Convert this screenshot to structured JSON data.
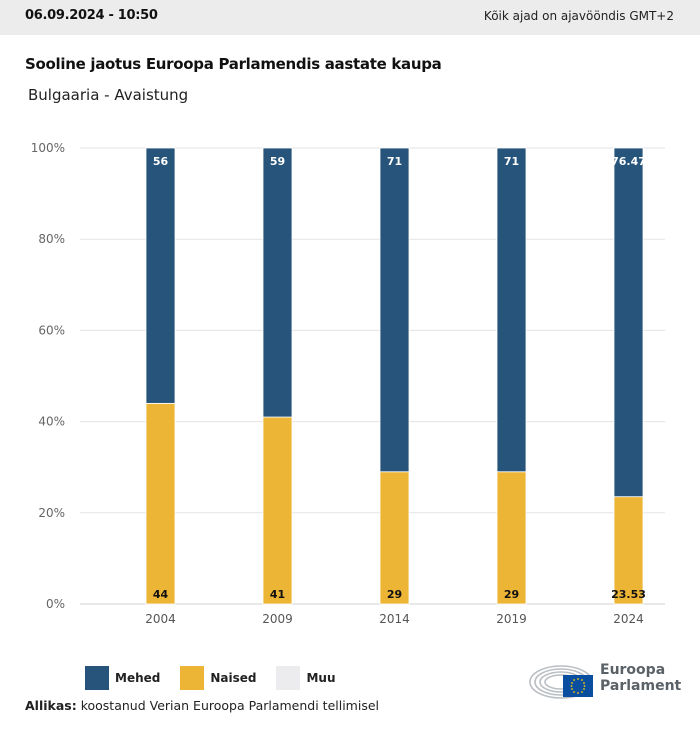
{
  "header": {
    "datetime": "06.09.2024 - 10:50",
    "timezone_note": "Kõik ajad on ajavööndis GMT+2"
  },
  "title": "Sooline jaotus Euroopa Parlamendis aastate kaupa",
  "subtitle": "Bulgaaria - Avaistung",
  "colors": {
    "mehed": "#26547a",
    "naised": "#edb536",
    "muu": "#ececee",
    "grid": "#e3e3e3"
  },
  "legend": [
    {
      "label": "Mehed",
      "color": "#26547a"
    },
    {
      "label": "Naised",
      "color": "#edb536"
    },
    {
      "label": "Muu",
      "color": "#ececee"
    }
  ],
  "source": {
    "label": "Allikas:",
    "text": " koostanud Verian Euroopa Parlamendi tellimisel"
  },
  "logo": {
    "line1": "Euroopa",
    "line2": "Parlament"
  },
  "chart_data": {
    "type": "bar",
    "stacked": true,
    "title": "Sooline jaotus Euroopa Parlamendis aastate kaupa",
    "subtitle": "Bulgaaria - Avaistung",
    "categories": [
      "2004",
      "2009",
      "2014",
      "2019",
      "2024"
    ],
    "series": [
      {
        "name": "Naised",
        "values": [
          44,
          41,
          29,
          29,
          23.53
        ]
      },
      {
        "name": "Mehed",
        "values": [
          56,
          59,
          71,
          71,
          76.47
        ]
      },
      {
        "name": "Muu",
        "values": [
          0,
          0,
          0,
          0,
          0
        ]
      }
    ],
    "data_labels": {
      "Mehed": [
        "56",
        "59",
        "71",
        "71",
        "76.47"
      ],
      "Naised": [
        "44",
        "41",
        "29",
        "29",
        "23.53"
      ]
    },
    "yticks": [
      "0%",
      "20%",
      "40%",
      "60%",
      "80%",
      "100%"
    ],
    "ylim": [
      0,
      100
    ],
    "xlabel": "",
    "ylabel": "",
    "grid": true,
    "legend_position": "bottom-left"
  }
}
